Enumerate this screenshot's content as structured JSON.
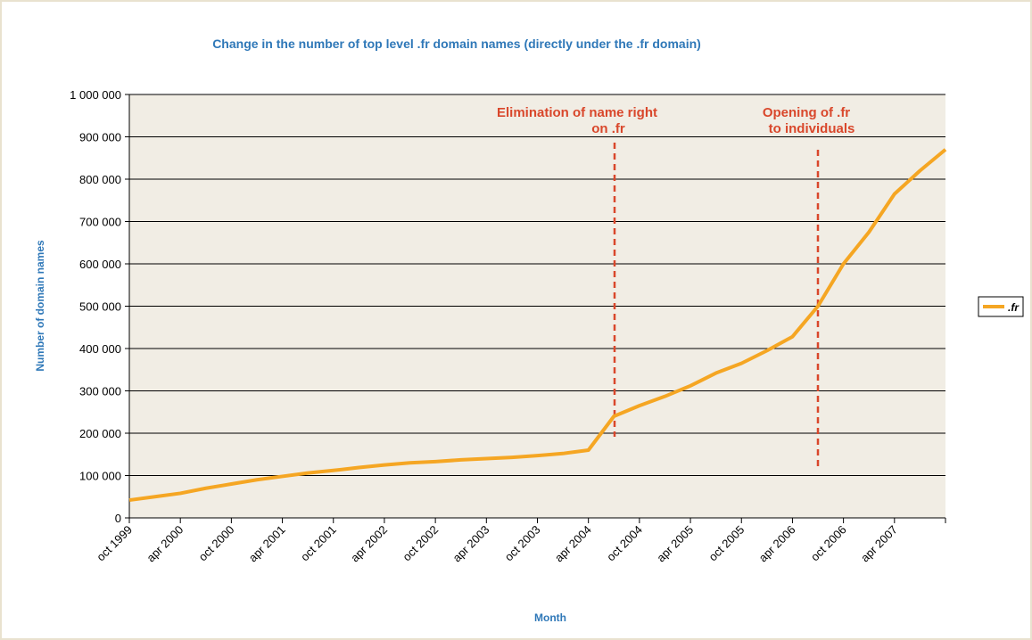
{
  "chart_data": {
    "type": "line",
    "title": "Change in the number of top level .fr domain names (directly under the .fr domain)",
    "x_label": "Month",
    "y_label": "Number of domain names",
    "categories": [
      "oct 1999",
      null,
      "apr 2000",
      null,
      "oct 2000",
      null,
      "apr 2001",
      null,
      "oct 2001",
      null,
      "apr 2002",
      null,
      "oct 2002",
      null,
      "apr 2003",
      null,
      "oct 2003",
      null,
      "apr 2004",
      null,
      "oct 2004",
      null,
      "apr 2005",
      null,
      "oct 2005",
      null,
      "apr 2006",
      null,
      "oct 2006",
      null,
      "apr 2007",
      null,
      null
    ],
    "series": [
      {
        "name": ".fr",
        "color": "#f5a623",
        "values": [
          42000,
          50000,
          58000,
          70000,
          80000,
          90000,
          98000,
          106000,
          112000,
          119000,
          125000,
          130000,
          133000,
          137000,
          140000,
          143000,
          147000,
          152000,
          160000,
          240000,
          265000,
          287000,
          312000,
          342000,
          365000,
          395000,
          428000,
          500000,
          600000,
          675000,
          765000,
          820000,
          870000
        ]
      }
    ],
    "ylim": [
      0,
      1000000
    ],
    "yticks": [
      0,
      {
        "value": 100000,
        "label": "100 000"
      },
      {
        "value": 200000,
        "label": "200 000"
      },
      {
        "value": 300000,
        "label": "300 000"
      },
      {
        "value": 400000,
        "label": "400 000"
      },
      {
        "value": 500000,
        "label": "500 000"
      },
      {
        "value": 600000,
        "label": "600 000"
      },
      {
        "value": 700000,
        "label": "700 000"
      },
      {
        "value": 800000,
        "label": "800 000"
      },
      {
        "value": 900000,
        "label": "900 000"
      },
      {
        "value": 1000000,
        "label": "1 000 000"
      }
    ],
    "grid": true,
    "legend": "right",
    "annotations": [
      {
        "lines": [
          "Elimination of name right",
          "on .fr"
        ]
      },
      {
        "lines": [
          "Opening of .fr",
          "to individuals"
        ]
      }
    ]
  }
}
